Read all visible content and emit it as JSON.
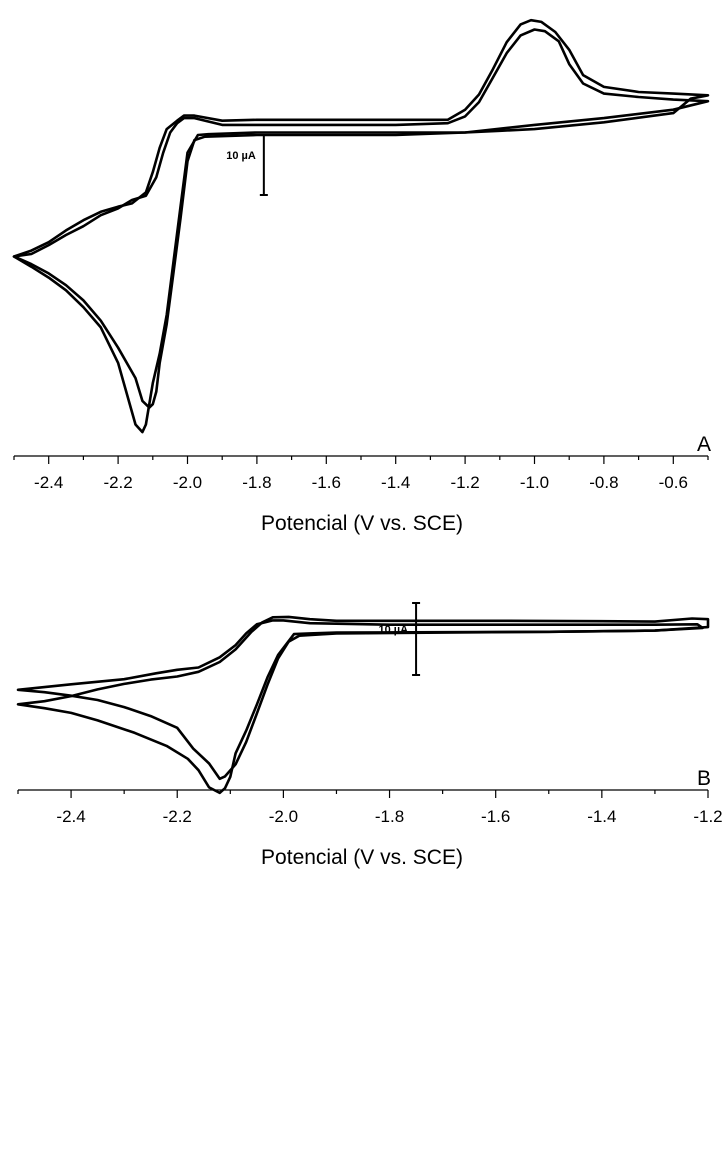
{
  "chart_data": [
    {
      "type": "line",
      "panel_label": "A",
      "xlabel": "Potencial (V vs. SCE)",
      "xlim": [
        -2.5,
        -0.5
      ],
      "tick_values": [
        -2.4,
        -2.2,
        -2.0,
        -1.8,
        -1.6,
        -1.4,
        -1.2,
        -1.0,
        -0.8,
        -0.6
      ],
      "tick_labels": [
        "-2.4",
        "-2.2",
        "-2.0",
        "-1.8",
        "-1.6",
        "-1.4",
        "-1.2",
        "-1.0",
        "-0.8",
        "-0.6"
      ],
      "y_axis_visible": false,
      "scale_bar": {
        "label": "10 µA",
        "value_uA": 10,
        "x": -1.78
      },
      "ylim": [
        -55,
        45
      ],
      "series": [
        {
          "closed": true,
          "points": [
            [
              -2.5,
              -12
            ],
            [
              -2.45,
              -11.4
            ],
            [
              -2.4,
              -9.3
            ],
            [
              -2.35,
              -6.9
            ],
            [
              -2.3,
              -4.8
            ],
            [
              -2.25,
              -2.2
            ],
            [
              -2.2,
              -0.6
            ],
            [
              -2.16,
              1.4
            ],
            [
              -2.12,
              2.4
            ],
            [
              -2.09,
              6.8
            ],
            [
              -2.07,
              12.6
            ],
            [
              -2.05,
              17.4
            ],
            [
              -2.03,
              19.6
            ],
            [
              -2.01,
              20.8
            ],
            [
              -1.98,
              20.8
            ],
            [
              -1.9,
              19.2
            ],
            [
              -1.8,
              19.2
            ],
            [
              -1.6,
              19.2
            ],
            [
              -1.4,
              19.2
            ],
            [
              -1.25,
              19.6
            ],
            [
              -1.2,
              21.2
            ],
            [
              -1.16,
              24.6
            ],
            [
              -1.12,
              30.4
            ],
            [
              -1.08,
              36.2
            ],
            [
              -1.04,
              40.4
            ],
            [
              -1.0,
              41.8
            ],
            [
              -0.97,
              41.4
            ],
            [
              -0.93,
              39.0
            ],
            [
              -0.9,
              33.6
            ],
            [
              -0.86,
              29.0
            ],
            [
              -0.8,
              26.6
            ],
            [
              -0.7,
              25.8
            ],
            [
              -0.6,
              25.2
            ],
            [
              -0.5,
              24.8
            ],
            [
              -0.6,
              22.8
            ],
            [
              -0.8,
              20.8
            ],
            [
              -1.0,
              19.2
            ],
            [
              -1.2,
              17.4
            ],
            [
              -1.4,
              16.8
            ],
            [
              -1.6,
              16.8
            ],
            [
              -1.8,
              16.8
            ],
            [
              -1.95,
              16.4
            ],
            [
              -1.98,
              15.6
            ],
            [
              -2.0,
              10.6
            ],
            [
              -2.02,
              -2.8
            ],
            [
              -2.04,
              -15.6
            ],
            [
              -2.06,
              -28.0
            ],
            [
              -2.08,
              -37.2
            ],
            [
              -2.09,
              -44.0
            ],
            [
              -2.1,
              -47.0
            ],
            [
              -2.11,
              -47.8
            ],
            [
              -2.13,
              -46.2
            ],
            [
              -2.15,
              -40.8
            ],
            [
              -2.2,
              -33.6
            ],
            [
              -2.25,
              -27.2
            ],
            [
              -2.3,
              -22.4
            ],
            [
              -2.35,
              -18.8
            ],
            [
              -2.4,
              -16.0
            ],
            [
              -2.45,
              -13.8
            ],
            [
              -2.5,
              -12
            ]
          ]
        },
        {
          "closed": true,
          "points": [
            [
              -2.5,
              -12
            ],
            [
              -2.45,
              -10.6
            ],
            [
              -2.4,
              -8.6
            ],
            [
              -2.35,
              -5.8
            ],
            [
              -2.3,
              -3.4
            ],
            [
              -2.25,
              -1.4
            ],
            [
              -2.2,
              -0.2
            ],
            [
              -2.16,
              0.6
            ],
            [
              -2.12,
              3.2
            ],
            [
              -2.1,
              8.0
            ],
            [
              -2.08,
              13.8
            ],
            [
              -2.06,
              18.2
            ],
            [
              -2.03,
              20.2
            ],
            [
              -2.01,
              21.4
            ],
            [
              -1.98,
              21.4
            ],
            [
              -1.9,
              20.2
            ],
            [
              -1.8,
              20.4
            ],
            [
              -1.6,
              20.4
            ],
            [
              -1.4,
              20.4
            ],
            [
              -1.25,
              20.4
            ],
            [
              -1.2,
              22.8
            ],
            [
              -1.16,
              26.4
            ],
            [
              -1.12,
              32.4
            ],
            [
              -1.08,
              38.8
            ],
            [
              -1.04,
              43.0
            ],
            [
              -1.01,
              44.0
            ],
            [
              -0.98,
              43.6
            ],
            [
              -0.94,
              41.2
            ],
            [
              -0.9,
              37.0
            ],
            [
              -0.86,
              31.0
            ],
            [
              -0.8,
              28.2
            ],
            [
              -0.7,
              27.0
            ],
            [
              -0.6,
              26.6
            ],
            [
              -0.5,
              26.2
            ],
            [
              -0.55,
              25.4
            ],
            [
              -0.6,
              22.0
            ],
            [
              -0.8,
              19.8
            ],
            [
              -1.0,
              18.2
            ],
            [
              -1.1,
              17.8
            ],
            [
              -1.2,
              17.4
            ],
            [
              -1.4,
              17.4
            ],
            [
              -1.6,
              17.4
            ],
            [
              -1.8,
              17.4
            ],
            [
              -1.94,
              17.0
            ],
            [
              -1.97,
              16.8
            ],
            [
              -2.0,
              12.6
            ],
            [
              -2.02,
              0.0
            ],
            [
              -2.04,
              -13.0
            ],
            [
              -2.06,
              -25.8
            ],
            [
              -2.08,
              -35.0
            ],
            [
              -2.1,
              -42.0
            ],
            [
              -2.12,
              -51.8
            ],
            [
              -2.13,
              -53.6
            ],
            [
              -2.15,
              -51.8
            ],
            [
              -2.2,
              -37.2
            ],
            [
              -2.25,
              -28.8
            ],
            [
              -2.3,
              -24.0
            ],
            [
              -2.35,
              -20.0
            ],
            [
              -2.4,
              -17.0
            ],
            [
              -2.45,
              -14.4
            ],
            [
              -2.5,
              -12
            ]
          ]
        }
      ]
    },
    {
      "type": "line",
      "panel_label": "B",
      "xlabel": "Potencial (V vs. SCE)",
      "xlim": [
        -2.5,
        -1.2
      ],
      "tick_values": [
        -2.4,
        -2.2,
        -2.0,
        -1.8,
        -1.6,
        -1.4,
        -1.2
      ],
      "tick_labels": [
        "-2.4",
        "-2.2",
        "-2.0",
        "-1.8",
        "-1.6",
        "-1.4",
        "-1.2"
      ],
      "y_axis_visible": false,
      "scale_bar": {
        "label": "10 µA",
        "value_uA": 10,
        "x": -1.75
      },
      "ylim": [
        -60,
        40
      ],
      "series": [
        {
          "closed": true,
          "points": [
            [
              -2.5,
              -4.8
            ],
            [
              -2.4,
              -2.0
            ],
            [
              -2.3,
              0.6
            ],
            [
              -2.24,
              3.6
            ],
            [
              -2.2,
              5.4
            ],
            [
              -2.16,
              6.6
            ],
            [
              -2.12,
              11.8
            ],
            [
              -2.09,
              18.0
            ],
            [
              -2.07,
              24.0
            ],
            [
              -2.05,
              28.6
            ],
            [
              -2.02,
              30.6
            ],
            [
              -2.0,
              30.6
            ],
            [
              -1.95,
              29.2
            ],
            [
              -1.8,
              28.4
            ],
            [
              -1.6,
              28.4
            ],
            [
              -1.4,
              28.4
            ],
            [
              -1.3,
              28.4
            ],
            [
              -1.22,
              28.6
            ],
            [
              -1.21,
              26.8
            ],
            [
              -1.3,
              25.4
            ],
            [
              -1.5,
              24.8
            ],
            [
              -1.7,
              24.4
            ],
            [
              -1.9,
              24.0
            ],
            [
              -1.97,
              22.8
            ],
            [
              -1.99,
              19.8
            ],
            [
              -2.01,
              11.2
            ],
            [
              -2.03,
              -2.2
            ],
            [
              -2.05,
              -17.0
            ],
            [
              -2.07,
              -31.4
            ],
            [
              -2.09,
              -42.8
            ],
            [
              -2.11,
              -49.0
            ],
            [
              -2.12,
              -50.2
            ],
            [
              -2.14,
              -42.4
            ],
            [
              -2.17,
              -34.8
            ],
            [
              -2.2,
              -24.2
            ],
            [
              -2.25,
              -18.2
            ],
            [
              -2.3,
              -13.6
            ],
            [
              -2.35,
              -10.0
            ],
            [
              -2.4,
              -7.8
            ],
            [
              -2.45,
              -6.0
            ],
            [
              -2.5,
              -4.8
            ]
          ]
        },
        {
          "closed": true,
          "points": [
            [
              -2.5,
              -12.2
            ],
            [
              -2.45,
              -10.6
            ],
            [
              -2.4,
              -8.0
            ],
            [
              -2.35,
              -4.6
            ],
            [
              -2.3,
              -1.8
            ],
            [
              -2.25,
              0.4
            ],
            [
              -2.2,
              2.0
            ],
            [
              -2.16,
              4.4
            ],
            [
              -2.12,
              9.4
            ],
            [
              -2.09,
              15.8
            ],
            [
              -2.06,
              24.8
            ],
            [
              -2.04,
              29.6
            ],
            [
              -2.02,
              32.2
            ],
            [
              -1.99,
              32.4
            ],
            [
              -1.95,
              31.2
            ],
            [
              -1.9,
              30.4
            ],
            [
              -1.8,
              30.4
            ],
            [
              -1.6,
              30.4
            ],
            [
              -1.4,
              30.2
            ],
            [
              -1.3,
              30.0
            ],
            [
              -1.23,
              31.6
            ],
            [
              -1.2,
              31.2
            ],
            [
              -1.2,
              27.2
            ],
            [
              -1.3,
              25.4
            ],
            [
              -1.5,
              24.8
            ],
            [
              -1.7,
              24.6
            ],
            [
              -1.9,
              24.4
            ],
            [
              -1.95,
              24.0
            ],
            [
              -1.98,
              23.6
            ],
            [
              -2.01,
              13.0
            ],
            [
              -2.03,
              1.6
            ],
            [
              -2.05,
              -12.4
            ],
            [
              -2.07,
              -25.6
            ],
            [
              -2.09,
              -37.2
            ],
            [
              -2.1,
              -49.2
            ],
            [
              -2.11,
              -55.0
            ],
            [
              -2.12,
              -57.4
            ],
            [
              -2.14,
              -54.6
            ],
            [
              -2.16,
              -45.8
            ],
            [
              -2.18,
              -40.0
            ],
            [
              -2.22,
              -33.4
            ],
            [
              -2.28,
              -26.8
            ],
            [
              -2.35,
              -20.4
            ],
            [
              -2.4,
              -16.6
            ],
            [
              -2.45,
              -14.2
            ],
            [
              -2.5,
              -12.2
            ]
          ]
        }
      ]
    }
  ]
}
